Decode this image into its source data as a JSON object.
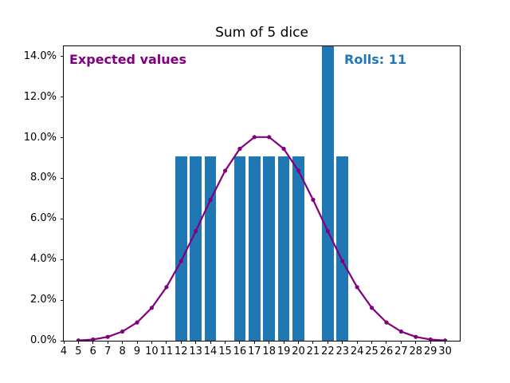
{
  "title": "Sum of 5 dice",
  "annotations": {
    "expected_label": "Expected values",
    "rolls_label": "Rolls: 11"
  },
  "colors": {
    "bar": "#1f77b4",
    "line": "#800080",
    "expected_text": "#800080",
    "rolls_text": "#1f77b4",
    "axis": "#000000",
    "background": "#ffffff"
  },
  "chart_data": {
    "type": "bar",
    "title": "Sum of 5 dice",
    "xlabel": "",
    "ylabel": "",
    "grid": false,
    "xlim": [
      4,
      31
    ],
    "ylim": [
      0,
      14.5
    ],
    "x_ticks": [
      4,
      5,
      6,
      7,
      8,
      9,
      10,
      11,
      12,
      13,
      14,
      15,
      16,
      17,
      18,
      19,
      20,
      21,
      22,
      23,
      24,
      25,
      26,
      27,
      28,
      29,
      30
    ],
    "y_ticks": [
      0,
      2,
      4,
      6,
      8,
      10,
      12,
      14
    ],
    "y_tick_labels": [
      "0.0%",
      "2.0%",
      "4.0%",
      "6.0%",
      "8.0%",
      "10.0%",
      "12.0%",
      "14.0%"
    ],
    "bars": {
      "name": "Rolls: 11",
      "total_rolls": 11,
      "bar_width_units": 0.8,
      "x": [
        12,
        13,
        14,
        16,
        17,
        18,
        19,
        20,
        22,
        23
      ],
      "counts": [
        1,
        1,
        1,
        1,
        1,
        1,
        1,
        1,
        2,
        1
      ],
      "values_pct": [
        9.09,
        9.09,
        9.09,
        9.09,
        9.09,
        9.09,
        9.09,
        9.09,
        18.18,
        9.09
      ]
    },
    "line": {
      "name": "Expected values",
      "marker": "circle",
      "x": [
        5,
        6,
        7,
        8,
        9,
        10,
        11,
        12,
        13,
        14,
        15,
        16,
        17,
        18,
        19,
        20,
        21,
        22,
        23,
        24,
        25,
        26,
        27,
        28,
        29,
        30
      ],
      "values_pct": [
        0.01,
        0.06,
        0.19,
        0.45,
        0.9,
        1.62,
        2.64,
        3.92,
        5.4,
        6.94,
        8.37,
        9.45,
        10.03,
        10.03,
        9.45,
        8.37,
        6.94,
        5.4,
        3.92,
        2.64,
        1.62,
        0.9,
        0.45,
        0.19,
        0.06,
        0.01
      ]
    }
  }
}
